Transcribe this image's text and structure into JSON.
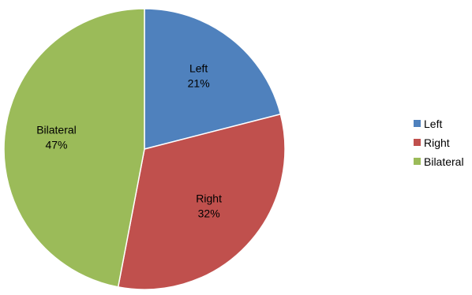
{
  "chart_data": {
    "type": "pie",
    "title": "",
    "start_angle_deg": 0,
    "direction": "clockwise",
    "legend_position": "right",
    "slices": [
      {
        "label": "Left",
        "value": 21,
        "display": "21%",
        "color": "#4f81bd"
      },
      {
        "label": "Right",
        "value": 32,
        "display": "32%",
        "color": "#c0504d"
      },
      {
        "label": "Bilateral",
        "value": 47,
        "display": "47%",
        "color": "#9bbb59"
      }
    ],
    "legend": [
      {
        "label": "Left",
        "color": "#4f81bd"
      },
      {
        "label": "Right",
        "color": "#c0504d"
      },
      {
        "label": "Bilateral",
        "color": "#9bbb59"
      }
    ]
  }
}
